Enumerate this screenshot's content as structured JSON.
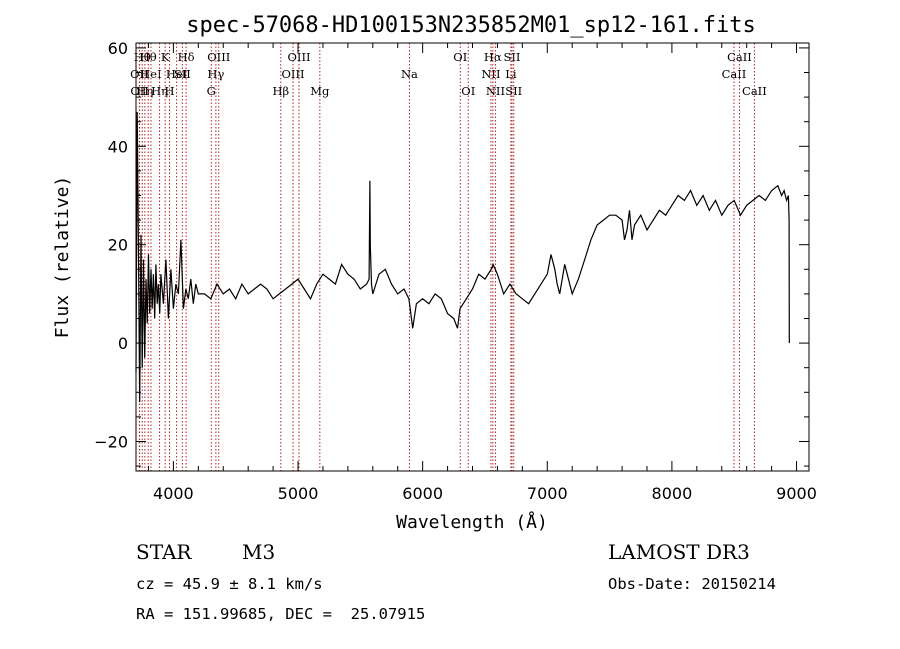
{
  "chart_data": {
    "type": "line",
    "title": "spec-57068-HD100153N235852M01_sp12-161.fits",
    "xlabel": "Wavelength (Å)",
    "ylabel": "Flux (relative)",
    "xlim": [
      3700,
      9100
    ],
    "ylim": [
      -26,
      61
    ],
    "x_ticks": [
      4000,
      5000,
      6000,
      7000,
      8000,
      9000
    ],
    "y_ticks": [
      -20,
      0,
      20,
      40,
      60
    ],
    "x_tick_labels": [
      "4000",
      "5000",
      "6000",
      "7000",
      "8000",
      "9000"
    ],
    "y_tick_labels": [
      "−20",
      "0",
      "20",
      "40",
      "60"
    ],
    "grid": false,
    "series": [
      {
        "color": "#000000",
        "x": [
          3700,
          3710,
          3720,
          3730,
          3740,
          3750,
          3760,
          3770,
          3780,
          3790,
          3800,
          3810,
          3820,
          3830,
          3840,
          3850,
          3860,
          3870,
          3880,
          3890,
          3900,
          3920,
          3940,
          3960,
          3980,
          4000,
          4020,
          4040,
          4060,
          4080,
          4100,
          4120,
          4140,
          4160,
          4180,
          4200,
          4250,
          4300,
          4350,
          4400,
          4450,
          4500,
          4550,
          4600,
          4650,
          4700,
          4750,
          4800,
          4850,
          4900,
          4950,
          5000,
          5050,
          5100,
          5150,
          5200,
          5250,
          5300,
          5350,
          5400,
          5450,
          5500,
          5550,
          5570,
          5577,
          5580,
          5590,
          5600,
          5650,
          5700,
          5750,
          5800,
          5850,
          5890,
          5900,
          5920,
          5950,
          6000,
          6050,
          6100,
          6150,
          6200,
          6250,
          6280,
          6300,
          6350,
          6400,
          6450,
          6500,
          6550,
          6565,
          6600,
          6650,
          6700,
          6750,
          6800,
          6850,
          6900,
          6950,
          7000,
          7030,
          7060,
          7080,
          7100,
          7120,
          7140,
          7160,
          7200,
          7250,
          7300,
          7350,
          7400,
          7450,
          7500,
          7550,
          7600,
          7620,
          7640,
          7660,
          7680,
          7700,
          7750,
          7800,
          7850,
          7900,
          7950,
          8000,
          8050,
          8100,
          8150,
          8200,
          8250,
          8300,
          8350,
          8400,
          8450,
          8500,
          8550,
          8600,
          8650,
          8700,
          8750,
          8800,
          8850,
          8880,
          8900,
          8920,
          8935,
          8940,
          8942
        ],
        "y": [
          -6,
          47,
          18,
          -12,
          22,
          -5,
          17,
          -3,
          13,
          4,
          18,
          6,
          15,
          7,
          14,
          5,
          16,
          8,
          12,
          6,
          14,
          8,
          17,
          5,
          15,
          7,
          12,
          10,
          21,
          7,
          11,
          9,
          13,
          8,
          12,
          10,
          10,
          9,
          12,
          10,
          11,
          9,
          12,
          10,
          11,
          12,
          11,
          9,
          10,
          11,
          12,
          13,
          11,
          9,
          12,
          14,
          13,
          12,
          16,
          14,
          13,
          11,
          12,
          13,
          33,
          20,
          12,
          10,
          14,
          15,
          12,
          10,
          11,
          9,
          7,
          3,
          8,
          9,
          8,
          10,
          9,
          6,
          5,
          3,
          7,
          9,
          11,
          14,
          13,
          15,
          16,
          14,
          10,
          12,
          10,
          9,
          8,
          10,
          12,
          14,
          18,
          15,
          12,
          10,
          13,
          16,
          14,
          10,
          13,
          17,
          21,
          24,
          25,
          26,
          26,
          25,
          21,
          23,
          27,
          21,
          24,
          26,
          23,
          25,
          27,
          26,
          28,
          30,
          29,
          31,
          28,
          30,
          27,
          29,
          26,
          28,
          29,
          26,
          28,
          29,
          30,
          29,
          31,
          32,
          30,
          31,
          29,
          30,
          25,
          0
        ]
      }
    ],
    "line_markers": [
      {
        "wavelength": 3727,
        "label": "OII",
        "row": 2
      },
      {
        "wavelength": 3729,
        "label": "OII",
        "row": 3
      },
      {
        "wavelength": 3750,
        "label": "Hθ",
        "row": 1
      },
      {
        "wavelength": 3771,
        "label": "Hη",
        "row": 3
      },
      {
        "wavelength": 3798,
        "label": "Hθ",
        "row": 1
      },
      {
        "wavelength": 3820,
        "label": "HeI",
        "row": 2
      },
      {
        "wavelength": 3889,
        "label": "Hη",
        "row": 3
      },
      {
        "wavelength": 3934,
        "label": "K",
        "row": 1
      },
      {
        "wavelength": 3969,
        "label": "H",
        "row": 3
      },
      {
        "wavelength": 4026,
        "label": "HeI",
        "row": 2
      },
      {
        "wavelength": 4072,
        "label": "SII",
        "row": 2
      },
      {
        "wavelength": 4102,
        "label": "Hδ",
        "row": 1
      },
      {
        "wavelength": 4304,
        "label": "G",
        "row": 3
      },
      {
        "wavelength": 4341,
        "label": "Hγ",
        "row": 2
      },
      {
        "wavelength": 4364,
        "label": "OIII",
        "row": 1
      },
      {
        "wavelength": 4862,
        "label": "Hβ",
        "row": 3
      },
      {
        "wavelength": 4960,
        "label": "OIII",
        "row": 2
      },
      {
        "wavelength": 5008,
        "label": "OIII",
        "row": 1
      },
      {
        "wavelength": 5175,
        "label": "Mg",
        "row": 3
      },
      {
        "wavelength": 5894,
        "label": "Na",
        "row": 2
      },
      {
        "wavelength": 6302,
        "label": "OI",
        "row": 1
      },
      {
        "wavelength": 6366,
        "label": "OI",
        "row": 3
      },
      {
        "wavelength": 6548,
        "label": "NII",
        "row": 2
      },
      {
        "wavelength": 6563,
        "label": "Hα",
        "row": 1
      },
      {
        "wavelength": 6584,
        "label": "NII",
        "row": 3
      },
      {
        "wavelength": 6708,
        "label": "Li",
        "row": 2
      },
      {
        "wavelength": 6717,
        "label": "SII",
        "row": 1
      },
      {
        "wavelength": 6731,
        "label": "SII",
        "row": 3
      },
      {
        "wavelength": 8498,
        "label": "CaII",
        "row": 2
      },
      {
        "wavelength": 8542,
        "label": "CaII",
        "row": 1
      },
      {
        "wavelength": 8662,
        "label": "CaII",
        "row": 3
      }
    ]
  },
  "info": {
    "object_class": "STAR",
    "subclass": "M3",
    "survey": "LAMOST DR3",
    "redshift_text": "cz = 45.9 ± 8.1 km/s",
    "obs_date_text": "Obs-Date: 20150214",
    "coords_text": "RA = 151.99685, DEC =  25.07915"
  }
}
